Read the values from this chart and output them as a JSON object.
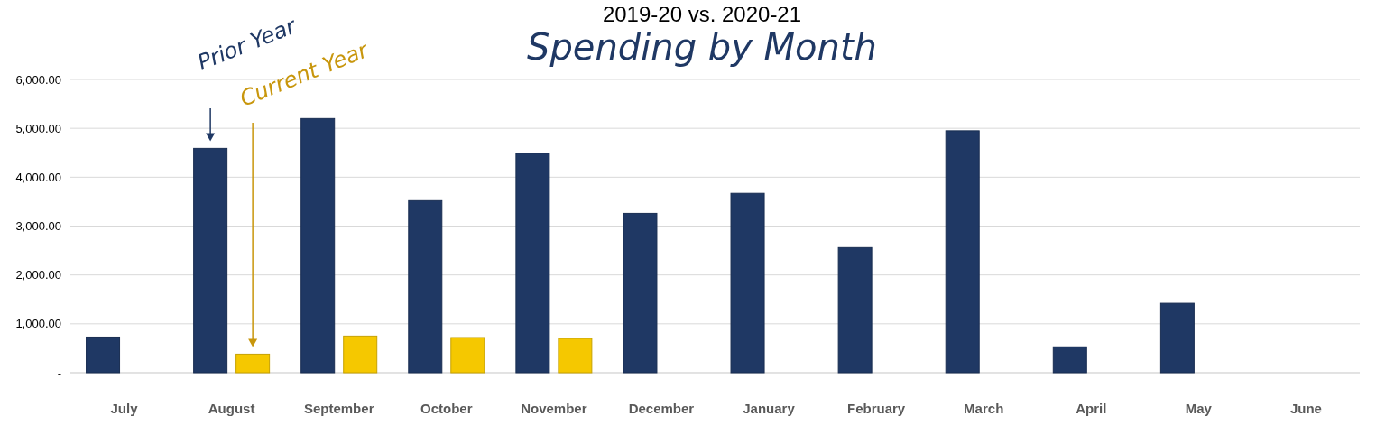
{
  "chart_data": {
    "type": "bar",
    "title": "2019-20 vs. 2020-21",
    "subtitle": "Spending by Month",
    "categories": [
      "July",
      "August",
      "September",
      "October",
      "November",
      "December",
      "January",
      "February",
      "March",
      "April",
      "May",
      "June"
    ],
    "series": [
      {
        "color": "#1f3864",
        "values": [
          730,
          4590,
          5200,
          3520,
          4490,
          3260,
          3670,
          2560,
          4950,
          530,
          1420,
          null
        ]
      },
      {
        "color": "#f5c800",
        "values": [
          null,
          380,
          750,
          720,
          700,
          null,
          null,
          null,
          null,
          null,
          null,
          null
        ]
      }
    ],
    "annotations": [
      "Prior Year",
      "Current Year"
    ],
    "ylim": [
      0,
      6000
    ],
    "yticks": [
      {
        "value": 0,
        "label": "-"
      },
      {
        "value": 1000,
        "label": "1,000.00"
      },
      {
        "value": 2000,
        "label": "2,000.00"
      },
      {
        "value": 3000,
        "label": "3,000.00"
      },
      {
        "value": 4000,
        "label": "4,000.00"
      },
      {
        "value": 5000,
        "label": "5,000.00"
      },
      {
        "value": 6000,
        "label": "6,000.00"
      }
    ],
    "grid": "y"
  }
}
